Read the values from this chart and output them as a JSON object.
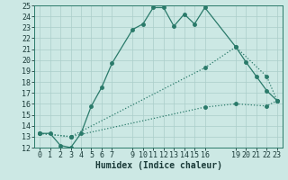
{
  "xlabel": "Humidex (Indice chaleur)",
  "bg_color": "#cce8e4",
  "grid_color": "#aaceca",
  "line_color": "#2a7a6a",
  "xlim": [
    -0.5,
    23.5
  ],
  "ylim": [
    12,
    25
  ],
  "xtick_positions": [
    0,
    1,
    2,
    3,
    4,
    5,
    6,
    7,
    9,
    10,
    11,
    12,
    13,
    14,
    15,
    16,
    19,
    20,
    21,
    22,
    23
  ],
  "ytick_positions": [
    12,
    13,
    14,
    15,
    16,
    17,
    18,
    19,
    20,
    21,
    22,
    23,
    24,
    25
  ],
  "line1_x": [
    0,
    1,
    2,
    3,
    4,
    5,
    6,
    7,
    9,
    10,
    11,
    12,
    13,
    14,
    15,
    16,
    19,
    20,
    21,
    22,
    23
  ],
  "line1_y": [
    13.3,
    13.3,
    12.2,
    12.0,
    13.3,
    15.8,
    17.5,
    19.7,
    22.8,
    23.3,
    24.8,
    24.8,
    23.1,
    24.2,
    23.3,
    24.8,
    21.2,
    19.8,
    18.5,
    17.2,
    16.3
  ],
  "line2_x": [
    0,
    3,
    16,
    19,
    22,
    23
  ],
  "line2_y": [
    13.3,
    13.0,
    19.3,
    21.2,
    18.5,
    16.3
  ],
  "line3_x": [
    0,
    3,
    16,
    19,
    22,
    23
  ],
  "line3_y": [
    13.3,
    13.0,
    15.7,
    16.0,
    15.8,
    16.3
  ],
  "font_size_label": 7,
  "font_size_tick": 6,
  "marker_size": 2.5,
  "line_width": 0.9
}
